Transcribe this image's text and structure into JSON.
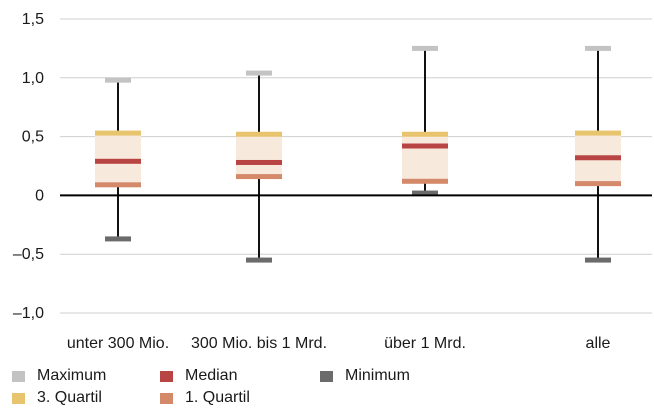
{
  "chart_data": {
    "type": "box",
    "categories": [
      "unter 300 Mio.",
      "300 Mio. bis 1 Mrd.",
      "über 1 Mrd.",
      "alle"
    ],
    "series": [
      {
        "name": "Maximum",
        "color": "#c3c3c3",
        "values": [
          0.98,
          1.04,
          1.25,
          1.25
        ]
      },
      {
        "name": "3. Quartil",
        "color": "#e8c46e",
        "values": [
          0.53,
          0.52,
          0.52,
          0.53
        ]
      },
      {
        "name": "Median",
        "color": "#b94444",
        "values": [
          0.29,
          0.28,
          0.42,
          0.32
        ]
      },
      {
        "name": "1. Quartil",
        "color": "#d4896a",
        "values": [
          0.09,
          0.16,
          0.12,
          0.1
        ]
      },
      {
        "name": "Minimum",
        "color": "#6b6b6b",
        "values": [
          -0.37,
          -0.55,
          0.02,
          -0.55
        ]
      }
    ],
    "y_ticks": [
      "1,5",
      "1,0",
      "0,5",
      "0",
      "–0,5",
      "–1,0"
    ],
    "y_tick_values": [
      1.5,
      1.0,
      0.5,
      0,
      -0.5,
      -1.0
    ],
    "ylim": [
      -1.0,
      1.5
    ],
    "box_fill": "#f7eadc",
    "grid": true,
    "legend_position": "bottom-left"
  },
  "legend": [
    {
      "label": "Maximum",
      "color": "#c3c3c3"
    },
    {
      "label": "Median",
      "color": "#b94444"
    },
    {
      "label": "Minimum",
      "color": "#6b6b6b"
    },
    {
      "label": "3. Quartil",
      "color": "#e8c46e"
    },
    {
      "label": "1. Quartil",
      "color": "#d4896a"
    }
  ]
}
